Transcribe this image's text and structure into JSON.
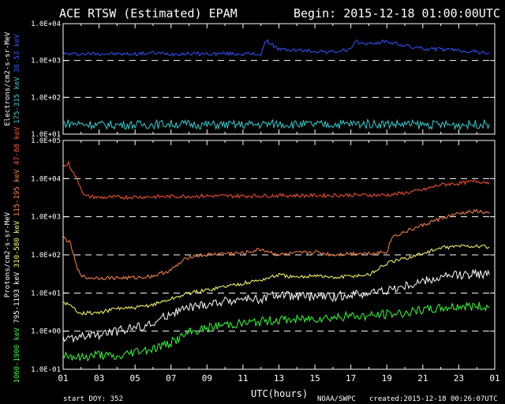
{
  "header": {
    "title": "ACE RTSW (Estimated) EPAM",
    "begin": "Begin: 2015-12-18 01:00:00UTC"
  },
  "footer": {
    "start_doy": "start DOY:  352",
    "credit": "NOAA/SWPC",
    "created": "created:2015-12-18 00:26:07UTC"
  },
  "chart_data": [
    {
      "type": "line",
      "panel": "electrons",
      "ylabel": "Electrons/cm2-s-sr-MeV",
      "yscale": "log",
      "ylim": [
        10,
        10000
      ],
      "yticks": [
        "1.0E+01",
        "1.0E+02",
        "1.0E+03",
        "1.0E+04"
      ],
      "xlabel": "UTC(hours)",
      "xlim": [
        1,
        25
      ],
      "xticks": [
        "01",
        "03",
        "05",
        "07",
        "09",
        "11",
        "13",
        "15",
        "17",
        "19",
        "21",
        "23",
        "01"
      ],
      "grid": "dashed at each decade",
      "series": [
        {
          "name": "38-53 keV",
          "color": "#3355ff",
          "x": [
            1,
            2,
            3,
            4,
            5,
            6,
            7,
            8,
            9,
            10,
            11,
            12,
            12.3,
            13,
            14,
            15,
            16,
            17,
            17.3,
            18,
            19,
            20,
            21,
            22,
            23,
            24,
            24.7
          ],
          "y": [
            1500,
            1500,
            1550,
            1500,
            1500,
            1600,
            1500,
            1550,
            1500,
            1550,
            1500,
            1500,
            3500,
            2000,
            1900,
            1800,
            1700,
            2000,
            3200,
            2800,
            3300,
            2500,
            2100,
            2000,
            1900,
            1700,
            1600
          ]
        },
        {
          "name": "175-315 keV",
          "color": "#33cccc",
          "x": [
            1,
            3,
            5,
            7,
            9,
            11,
            13,
            15,
            17,
            19,
            21,
            23,
            24.7
          ],
          "y": [
            20,
            18,
            18,
            19,
            18,
            18,
            19,
            18,
            19,
            19,
            18,
            18,
            19
          ]
        }
      ]
    },
    {
      "type": "line",
      "panel": "protons",
      "ylabel": "Protons/cm2-s-sr-MeV",
      "yscale": "log",
      "ylim": [
        0.1,
        100000
      ],
      "yticks": [
        "1.0E-01",
        "1.0E+00",
        "1.0E+01",
        "1.0E+02",
        "1.0E+03",
        "1.0E+04",
        "1.0E+05"
      ],
      "xlabel": "UTC(hours)",
      "xlim": [
        1,
        25
      ],
      "xticks": [
        "01",
        "03",
        "05",
        "07",
        "09",
        "11",
        "13",
        "15",
        "17",
        "19",
        "21",
        "23",
        "01"
      ],
      "grid": "dashed at each decade",
      "series": [
        {
          "name": "47-68 keV",
          "color": "#ff5533",
          "x": [
            1,
            1.3,
            1.8,
            2.2,
            3,
            5,
            7,
            9,
            11,
            13,
            15,
            17,
            19,
            20,
            21,
            22,
            23,
            24,
            24.7
          ],
          "y": [
            20000,
            25000,
            9000,
            3500,
            3200,
            3300,
            3400,
            3500,
            3500,
            3600,
            3600,
            3700,
            3700,
            4200,
            5000,
            7000,
            7500,
            8500,
            8000
          ]
        },
        {
          "name": "115-195 keV",
          "color": "#ff8844",
          "x": [
            1,
            1.4,
            1.8,
            2.2,
            3,
            4,
            5,
            6,
            7,
            8,
            9,
            10,
            11,
            12,
            13,
            14,
            15,
            16,
            17,
            18,
            19,
            19.3,
            20,
            21,
            22,
            23,
            24,
            24.7
          ],
          "y": [
            300,
            200,
            40,
            25,
            25,
            25,
            25,
            28,
            40,
            90,
            100,
            110,
            110,
            140,
            100,
            110,
            120,
            100,
            110,
            110,
            120,
            300,
            400,
            600,
            900,
            1200,
            1400,
            1200
          ]
        },
        {
          "name": "310-580 keV",
          "color": "#ffff66",
          "x": [
            1,
            2,
            3,
            4,
            5,
            6,
            7,
            8,
            9,
            10,
            11,
            12,
            13,
            14,
            15,
            16,
            17,
            18,
            19,
            20,
            21,
            22,
            23,
            24,
            24.7
          ],
          "y": [
            6,
            3,
            3,
            4,
            4,
            5,
            7,
            10,
            12,
            15,
            18,
            22,
            30,
            25,
            30,
            25,
            28,
            30,
            60,
            80,
            110,
            150,
            170,
            170,
            160
          ]
        },
        {
          "name": "795-1193 keV",
          "color": "#ffffff",
          "x": [
            1,
            2,
            3,
            4,
            5,
            6,
            7,
            8,
            9,
            10,
            11,
            12,
            13,
            14,
            15,
            16,
            17,
            18,
            19,
            20,
            21,
            22,
            23,
            24,
            24.7
          ],
          "y": [
            0.6,
            0.7,
            0.8,
            1.0,
            1.3,
            1.5,
            3,
            4,
            5,
            6,
            7,
            7,
            9,
            8,
            8,
            8,
            9,
            10,
            12,
            15,
            20,
            25,
            30,
            32,
            30
          ]
        },
        {
          "name": "1060-1900 keV",
          "color": "#33ff33",
          "x": [
            1,
            2,
            3,
            4,
            5,
            6,
            7,
            8,
            9,
            10,
            11,
            12,
            13,
            14,
            15,
            16,
            17,
            18,
            19,
            20,
            21,
            22,
            23,
            24,
            24.7
          ],
          "y": [
            0.25,
            0.2,
            0.25,
            0.2,
            0.3,
            0.35,
            0.5,
            0.9,
            1.2,
            1.5,
            1.6,
            1.8,
            2.0,
            2.0,
            2.2,
            2.3,
            2.5,
            2.5,
            2.8,
            3.0,
            3.5,
            4.0,
            4.5,
            4.5,
            4.2
          ]
        }
      ]
    }
  ]
}
